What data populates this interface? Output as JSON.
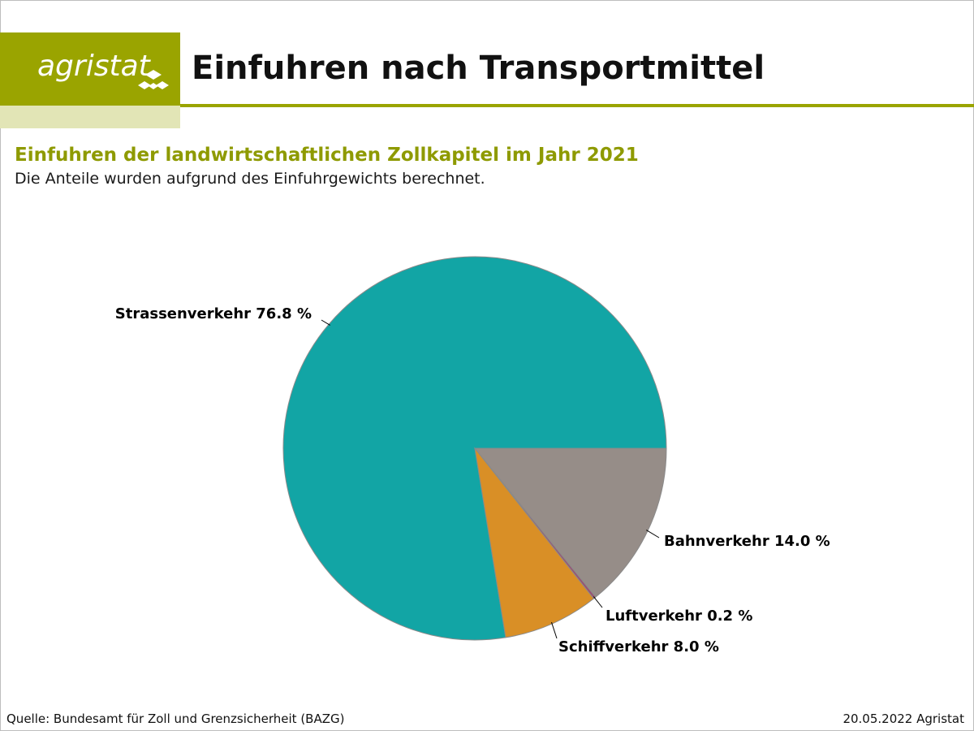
{
  "header": {
    "logo_text": "agristat",
    "title": "Einfuhren nach Transportmittel",
    "brand_color": "#9aa400"
  },
  "subtitle": "Einfuhren der landwirtschaftlichen Zollkapitel im Jahr 2021",
  "note": "Die Anteile wurden aufgrund des Einfuhrgewichts berechnet.",
  "footer": {
    "source": "Quelle: Bundesamt für Zoll und Grenzsicherheit (BAZG)",
    "date_author": "20.05.2022 Agristat"
  },
  "chart_data": {
    "type": "pie",
    "slices": [
      {
        "label": "Strassenverkehr 76.8 %",
        "name": "Strassenverkehr",
        "value": 76.8,
        "color": "#12a5a5"
      },
      {
        "label": "Bahnverkehr 14.0 %",
        "name": "Bahnverkehr",
        "value": 14.0,
        "color": "#968d88"
      },
      {
        "label": "Luftverkehr 0.2 %",
        "name": "Luftverkehr",
        "value": 0.2,
        "color": "#9b4f72"
      },
      {
        "label": "Schiffverkehr 8.0 %",
        "name": "Schiffverkehr",
        "value": 8.0,
        "color": "#d98f26"
      }
    ],
    "slice_order": "Strassenverkehr starts at 3 o'clock going counter-clockwise; remaining slices continue clockwise from 3 o'clock: Bahnverkehr, Luftverkehr, Schiffverkehr"
  }
}
